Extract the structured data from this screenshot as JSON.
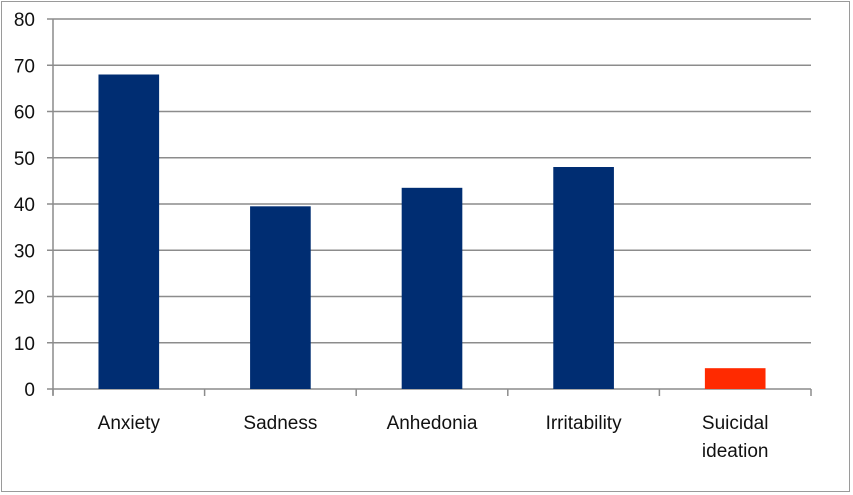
{
  "chart_data": {
    "type": "bar",
    "title": "",
    "xlabel": "",
    "ylabel": "",
    "categories": [
      [
        "Anxiety"
      ],
      [
        "Sadness"
      ],
      [
        "Anhedonia"
      ],
      [
        "Irritability"
      ],
      [
        "Suicidal",
        "ideation"
      ]
    ],
    "values": [
      68,
      39.5,
      43.5,
      48,
      4.5
    ],
    "bar_colors": [
      "#002d72",
      "#002d72",
      "#002d72",
      "#002d72",
      "#ff2a00"
    ],
    "ylim": [
      0,
      80
    ],
    "yticks": [
      0,
      10,
      20,
      30,
      40,
      50,
      60,
      70,
      80
    ],
    "grid": true,
    "legend": "none"
  }
}
